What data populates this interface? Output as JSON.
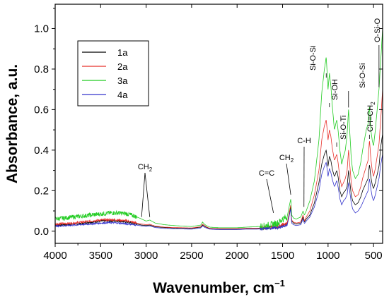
{
  "chart_data": {
    "type": "line",
    "xlabel": "Wavenumber, cm",
    "xlabel_sup": "−1",
    "ylabel": "Absorbance, a.u.",
    "xlim": [
      4000,
      400
    ],
    "ylim": [
      -0.06,
      1.12
    ],
    "x_reversed": true,
    "x_ticks": [
      4000,
      3500,
      3000,
      2500,
      2000,
      1500,
      1000,
      500
    ],
    "y_ticks": [
      0.0,
      0.2,
      0.4,
      0.6,
      0.8,
      1.0
    ],
    "x_tick_labels": [
      "4000",
      "3500",
      "3000",
      "2500",
      "2000",
      "1500",
      "1000",
      "500"
    ],
    "y_tick_labels": [
      "0.0",
      "0.2",
      "0.4",
      "0.6",
      "0.8",
      "1.0"
    ],
    "grid": false,
    "legend_position": "top-left",
    "series": [
      {
        "name": "1a",
        "color": "#000000",
        "x": [
          4000,
          3900,
          3800,
          3700,
          3600,
          3500,
          3400,
          3300,
          3200,
          3100,
          3050,
          3000,
          2960,
          2900,
          2800,
          2700,
          2600,
          2500,
          2400,
          2380,
          2360,
          2340,
          2300,
          2200,
          2100,
          2000,
          1900,
          1800,
          1700,
          1640,
          1600,
          1550,
          1500,
          1450,
          1410,
          1400,
          1380,
          1350,
          1300,
          1275,
          1260,
          1240,
          1200,
          1150,
          1100,
          1070,
          1040,
          1020,
          1000,
          985,
          970,
          950,
          930,
          920,
          905,
          890,
          870,
          850,
          830,
          810,
          790,
          775,
          760,
          745,
          730,
          700,
          670,
          640,
          620,
          600,
          580,
          560,
          545,
          530,
          515,
          500,
          480,
          460,
          440,
          420,
          400
        ],
        "y": [
          0.03,
          0.032,
          0.035,
          0.04,
          0.045,
          0.05,
          0.052,
          0.05,
          0.045,
          0.035,
          0.03,
          0.028,
          0.03,
          0.022,
          0.018,
          0.016,
          0.015,
          0.014,
          0.02,
          0.03,
          0.025,
          0.02,
          0.012,
          0.01,
          0.01,
          0.01,
          0.012,
          0.012,
          0.015,
          0.018,
          0.02,
          0.02,
          0.03,
          0.035,
          0.12,
          0.05,
          0.04,
          0.035,
          0.04,
          0.07,
          0.045,
          0.06,
          0.08,
          0.14,
          0.24,
          0.33,
          0.38,
          0.4,
          0.32,
          0.37,
          0.35,
          0.3,
          0.27,
          0.28,
          0.3,
          0.27,
          0.2,
          0.17,
          0.19,
          0.2,
          0.22,
          0.3,
          0.24,
          0.18,
          0.15,
          0.13,
          0.14,
          0.17,
          0.2,
          0.22,
          0.24,
          0.26,
          0.33,
          0.27,
          0.23,
          0.21,
          0.24,
          0.28,
          0.32,
          0.42,
          0.48
        ]
      },
      {
        "name": "2a",
        "color": "#e8302a",
        "x": [
          4000,
          3900,
          3800,
          3700,
          3600,
          3500,
          3400,
          3300,
          3200,
          3100,
          3050,
          3000,
          2960,
          2900,
          2800,
          2700,
          2600,
          2500,
          2400,
          2380,
          2360,
          2340,
          2300,
          2200,
          2100,
          2000,
          1900,
          1800,
          1700,
          1640,
          1600,
          1550,
          1500,
          1450,
          1410,
          1400,
          1380,
          1350,
          1300,
          1275,
          1260,
          1240,
          1200,
          1150,
          1100,
          1070,
          1040,
          1020,
          1000,
          985,
          970,
          950,
          930,
          920,
          905,
          890,
          870,
          850,
          830,
          810,
          790,
          775,
          760,
          745,
          730,
          700,
          670,
          640,
          620,
          600,
          580,
          560,
          545,
          530,
          515,
          500,
          480,
          460,
          440,
          420,
          400
        ],
        "y": [
          0.035,
          0.037,
          0.04,
          0.045,
          0.05,
          0.055,
          0.057,
          0.055,
          0.05,
          0.04,
          0.035,
          0.032,
          0.034,
          0.025,
          0.02,
          0.018,
          0.017,
          0.016,
          0.022,
          0.035,
          0.028,
          0.022,
          0.014,
          0.012,
          0.012,
          0.012,
          0.014,
          0.014,
          0.017,
          0.02,
          0.022,
          0.022,
          0.033,
          0.038,
          0.13,
          0.055,
          0.045,
          0.04,
          0.045,
          0.08,
          0.05,
          0.07,
          0.1,
          0.18,
          0.3,
          0.45,
          0.52,
          0.55,
          0.45,
          0.5,
          0.47,
          0.4,
          0.35,
          0.36,
          0.38,
          0.34,
          0.26,
          0.22,
          0.24,
          0.26,
          0.3,
          0.4,
          0.32,
          0.24,
          0.2,
          0.17,
          0.18,
          0.22,
          0.26,
          0.29,
          0.32,
          0.35,
          0.45,
          0.36,
          0.3,
          0.27,
          0.31,
          0.37,
          0.43,
          0.56,
          0.7
        ]
      },
      {
        "name": "3a",
        "color": "#22cc22",
        "x": [
          4000,
          3900,
          3800,
          3700,
          3600,
          3500,
          3400,
          3300,
          3200,
          3100,
          3050,
          3000,
          2960,
          2900,
          2800,
          2700,
          2600,
          2500,
          2400,
          2380,
          2360,
          2340,
          2300,
          2200,
          2100,
          2000,
          1900,
          1800,
          1700,
          1640,
          1600,
          1550,
          1500,
          1450,
          1410,
          1400,
          1380,
          1350,
          1300,
          1275,
          1260,
          1240,
          1200,
          1150,
          1100,
          1070,
          1040,
          1020,
          1000,
          985,
          970,
          950,
          930,
          920,
          905,
          890,
          870,
          850,
          830,
          810,
          790,
          775,
          760,
          745,
          730,
          700,
          670,
          640,
          620,
          600,
          580,
          560,
          545,
          530,
          515,
          500,
          480,
          460,
          440,
          420,
          400
        ],
        "y": [
          0.06,
          0.065,
          0.07,
          0.075,
          0.08,
          0.085,
          0.09,
          0.09,
          0.085,
          0.07,
          0.06,
          0.05,
          0.055,
          0.04,
          0.032,
          0.028,
          0.025,
          0.023,
          0.03,
          0.045,
          0.035,
          0.028,
          0.02,
          0.017,
          0.017,
          0.017,
          0.02,
          0.022,
          0.025,
          0.03,
          0.035,
          0.04,
          0.06,
          0.07,
          0.16,
          0.08,
          0.065,
          0.06,
          0.07,
          0.1,
          0.08,
          0.1,
          0.15,
          0.25,
          0.45,
          0.68,
          0.8,
          0.86,
          0.7,
          0.78,
          0.72,
          0.6,
          0.5,
          0.52,
          0.55,
          0.5,
          0.4,
          0.33,
          0.37,
          0.4,
          0.48,
          0.6,
          0.48,
          0.36,
          0.3,
          0.26,
          0.28,
          0.34,
          0.4,
          0.45,
          0.5,
          0.53,
          0.62,
          0.5,
          0.45,
          0.42,
          0.5,
          0.6,
          0.7,
          0.85,
          1.0
        ]
      },
      {
        "name": "4a",
        "color": "#3333cc",
        "x": [
          4000,
          3900,
          3800,
          3700,
          3600,
          3500,
          3400,
          3300,
          3200,
          3100,
          3050,
          3000,
          2960,
          2900,
          2800,
          2700,
          2600,
          2500,
          2400,
          2380,
          2360,
          2340,
          2300,
          2200,
          2100,
          2000,
          1900,
          1800,
          1700,
          1640,
          1600,
          1550,
          1500,
          1450,
          1410,
          1400,
          1380,
          1350,
          1300,
          1275,
          1260,
          1240,
          1200,
          1150,
          1100,
          1070,
          1040,
          1020,
          1000,
          985,
          970,
          950,
          930,
          920,
          905,
          890,
          870,
          850,
          830,
          810,
          790,
          775,
          760,
          745,
          730,
          700,
          670,
          640,
          620,
          600,
          580,
          560,
          545,
          530,
          515,
          500,
          480,
          460,
          440,
          420,
          400
        ],
        "y": [
          0.025,
          0.027,
          0.03,
          0.033,
          0.036,
          0.04,
          0.042,
          0.04,
          0.036,
          0.03,
          0.026,
          0.024,
          0.026,
          0.018,
          0.014,
          0.012,
          0.011,
          0.01,
          0.016,
          0.025,
          0.02,
          0.016,
          0.01,
          0.008,
          0.008,
          0.008,
          0.01,
          0.01,
          0.012,
          0.014,
          0.016,
          0.016,
          0.024,
          0.028,
          0.11,
          0.04,
          0.032,
          0.028,
          0.032,
          0.06,
          0.038,
          0.05,
          0.07,
          0.12,
          0.2,
          0.28,
          0.32,
          0.34,
          0.27,
          0.31,
          0.29,
          0.25,
          0.22,
          0.23,
          0.25,
          0.22,
          0.16,
          0.13,
          0.15,
          0.16,
          0.18,
          0.24,
          0.19,
          0.14,
          0.11,
          0.09,
          0.1,
          0.12,
          0.14,
          0.16,
          0.18,
          0.2,
          0.26,
          0.21,
          0.17,
          0.15,
          0.18,
          0.22,
          0.26,
          0.33,
          0.38
        ]
      }
    ],
    "annotations": [
      {
        "label": "CH",
        "sub": "2",
        "peaks": [
          3050,
          2960
        ],
        "rotate": false
      },
      {
        "label": "C=C",
        "sub": "",
        "peaks": [
          1600
        ],
        "rotate": false
      },
      {
        "label": "CH",
        "sub": "2",
        "peaks": [
          1410
        ],
        "rotate": false
      },
      {
        "label": "C-H",
        "sub": "",
        "peaks": [
          1265
        ],
        "rotate": false
      },
      {
        "label": "Si-O-Si",
        "sub": "",
        "peaks": [
          1020
        ],
        "rotate": true
      },
      {
        "label": "Si-OH",
        "sub": "",
        "peaks": [
          985
        ],
        "rotate": true
      },
      {
        "label": "Si-O-Ti",
        "sub": "",
        "peaks": [
          905
        ],
        "rotate": true
      },
      {
        "label": "Si-O-Si",
        "sub": "",
        "peaks": [
          775
        ],
        "rotate": true
      },
      {
        "label": "CH=CH",
        "sub": "2",
        "peaks": [
          545
        ],
        "rotate": true
      },
      {
        "label": "O-Si-O",
        "sub": "",
        "peaks": [
          440
        ],
        "rotate": true
      }
    ]
  }
}
